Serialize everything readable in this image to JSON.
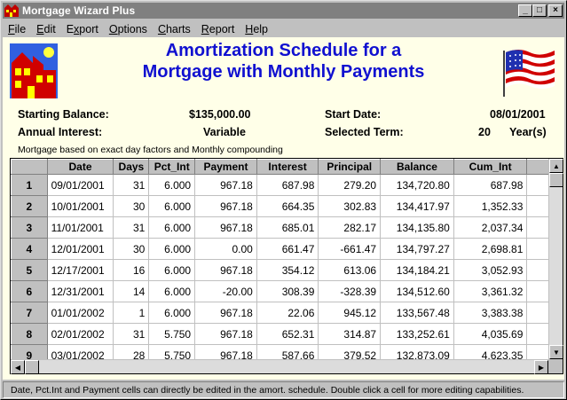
{
  "window": {
    "title": "Mortgage Wizard Plus"
  },
  "window_controls": {
    "minimize": "_",
    "maximize": "□",
    "close": "×"
  },
  "menu": [
    {
      "label": "File",
      "accel": "F",
      "rest": "ile"
    },
    {
      "label": "Edit",
      "accel": "E",
      "rest": "dit"
    },
    {
      "label": "Export",
      "accel": "x",
      "pre": "E",
      "rest": "port"
    },
    {
      "label": "Options",
      "accel": "O",
      "rest": "ptions"
    },
    {
      "label": "Charts",
      "accel": "C",
      "rest": "harts"
    },
    {
      "label": "Report",
      "accel": "R",
      "rest": "eport"
    },
    {
      "label": "Help",
      "accel": "H",
      "rest": "elp"
    }
  ],
  "header": {
    "title_line1": "Amortization Schedule for a",
    "title_line2": "Mortgage with Monthly Payments"
  },
  "summary": {
    "starting_balance_label": "Starting Balance:",
    "starting_balance_value": "$135,000.00",
    "annual_interest_label": "Annual Interest:",
    "annual_interest_value": "Variable",
    "start_date_label": "Start Date:",
    "start_date_value": "08/01/2001",
    "selected_term_label": "Selected Term:",
    "selected_term_value": "20",
    "selected_term_unit": "Year(s)",
    "note": "Mortgage based on exact day factors and Monthly compounding"
  },
  "table": {
    "columns": [
      "Date",
      "Days",
      "Pct_Int",
      "Payment",
      "Interest",
      "Principal",
      "Balance",
      "Cum_Int"
    ],
    "rows": [
      {
        "num": "1",
        "cells": [
          "09/01/2001",
          "31",
          "6.000",
          "967.18",
          "687.98",
          "279.20",
          "134,720.80",
          "687.98"
        ]
      },
      {
        "num": "2",
        "cells": [
          "10/01/2001",
          "30",
          "6.000",
          "967.18",
          "664.35",
          "302.83",
          "134,417.97",
          "1,352.33"
        ]
      },
      {
        "num": "3",
        "cells": [
          "11/01/2001",
          "31",
          "6.000",
          "967.18",
          "685.01",
          "282.17",
          "134,135.80",
          "2,037.34"
        ]
      },
      {
        "num": "4",
        "cells": [
          "12/01/2001",
          "30",
          "6.000",
          "0.00",
          "661.47",
          "-661.47",
          "134,797.27",
          "2,698.81"
        ]
      },
      {
        "num": "5",
        "cells": [
          "12/17/2001",
          "16",
          "6.000",
          "967.18",
          "354.12",
          "613.06",
          "134,184.21",
          "3,052.93"
        ]
      },
      {
        "num": "6",
        "cells": [
          "12/31/2001",
          "14",
          "6.000",
          "-20.00",
          "308.39",
          "-328.39",
          "134,512.60",
          "3,361.32"
        ]
      },
      {
        "num": "7",
        "cells": [
          "01/01/2002",
          "1",
          "6.000",
          "967.18",
          "22.06",
          "945.12",
          "133,567.48",
          "3,383.38"
        ]
      },
      {
        "num": "8",
        "cells": [
          "02/01/2002",
          "31",
          "5.750",
          "967.18",
          "652.31",
          "314.87",
          "133,252.61",
          "4,035.69"
        ]
      },
      {
        "num": "9",
        "cells": [
          "03/01/2002",
          "28",
          "5.750",
          "967.18",
          "587.66",
          "379.52",
          "132,873.09",
          "4,623.35"
        ]
      }
    ]
  },
  "status": {
    "text": "Date, Pct.Int and Payment cells can directly be edited in the amort. schedule. Double click a cell for more editing capabilities."
  },
  "colors": {
    "title_blue": "#1010d0",
    "content_bg": "#ffffe8",
    "chrome_gray": "#c0c0c0"
  },
  "icons": [
    "app-house-icon",
    "house-logo-icon",
    "us-flag-icon",
    "scroll-up-icon",
    "scroll-down-icon",
    "scroll-left-icon",
    "scroll-right-icon"
  ]
}
